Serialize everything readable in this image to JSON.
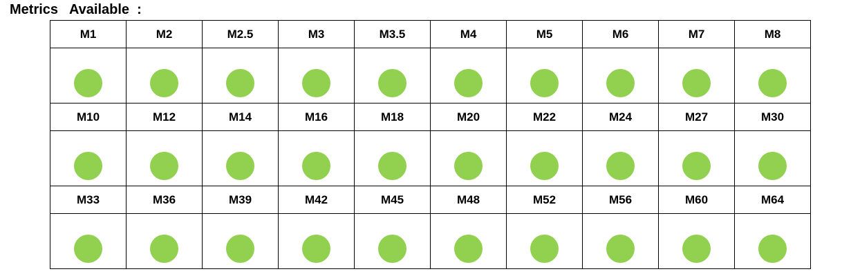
{
  "title": "Metrics   Available  :",
  "status_color": "#92D050",
  "status_icon": "filled-circle",
  "rows": [
    [
      "M1",
      "M2",
      "M2.5",
      "M3",
      "M3.5",
      "M4",
      "M5",
      "M6",
      "M7",
      "M8"
    ],
    [
      "M10",
      "M12",
      "M14",
      "M16",
      "M18",
      "M20",
      "M22",
      "M24",
      "M27",
      "M30"
    ],
    [
      "M33",
      "M36",
      "M39",
      "M42",
      "M45",
      "M48",
      "M52",
      "M56",
      "M60",
      "M64"
    ]
  ],
  "available": [
    [
      true,
      true,
      true,
      true,
      true,
      true,
      true,
      true,
      true,
      true
    ],
    [
      true,
      true,
      true,
      true,
      true,
      true,
      true,
      true,
      true,
      true
    ],
    [
      true,
      true,
      true,
      true,
      true,
      true,
      true,
      true,
      true,
      true
    ]
  ]
}
